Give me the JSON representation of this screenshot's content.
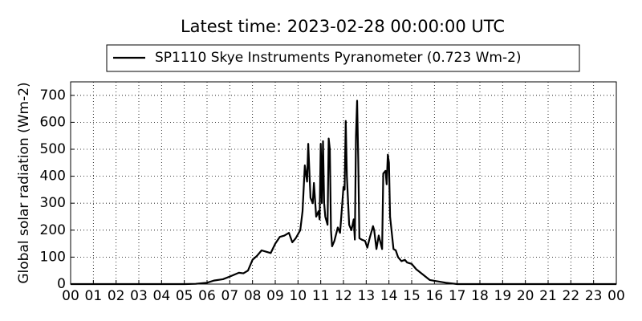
{
  "chart_data": {
    "type": "line",
    "title": "Latest time: 2023-02-28 00:00:00 UTC",
    "y_label": "Global solar radiation (Wm-2)",
    "x": [
      0,
      5,
      5.5,
      6,
      6.3,
      6.7,
      7,
      7.4,
      7.6,
      7.8,
      8,
      8.2,
      8.4,
      8.6,
      8.8,
      9,
      9.2,
      9.4,
      9.6,
      9.75,
      9.9,
      10.1,
      10.2,
      10.3,
      10.4,
      10.45,
      10.55,
      10.65,
      10.7,
      10.8,
      10.9,
      10.95,
      11.0,
      11.05,
      11.1,
      11.15,
      11.2,
      11.3,
      11.35,
      11.4,
      11.45,
      11.5,
      11.6,
      11.75,
      11.85,
      12.0,
      12.05,
      12.1,
      12.15,
      12.25,
      12.35,
      12.45,
      12.5,
      12.55,
      12.6,
      12.65,
      12.7,
      12.8,
      12.95,
      13.05,
      13.15,
      13.3,
      13.35,
      13.45,
      13.55,
      13.7,
      13.75,
      13.85,
      13.9,
      13.95,
      14.0,
      14.05,
      14.2,
      14.3,
      14.4,
      14.55,
      14.7,
      14.8,
      15,
      15.2,
      15.5,
      15.8,
      16,
      16.5,
      17,
      24
    ],
    "series": [
      {
        "name": "SP1110 Skye Instruments Pyranometer (0.723 Wm-2)",
        "color": "#000000",
        "values": [
          0,
          0,
          1,
          5,
          13,
          18,
          28,
          42,
          40,
          50,
          90,
          105,
          125,
          120,
          115,
          150,
          175,
          180,
          190,
          155,
          170,
          200,
          270,
          440,
          380,
          520,
          320,
          300,
          375,
          250,
          270,
          240,
          520,
          300,
          530,
          300,
          250,
          220,
          540,
          500,
          200,
          140,
          160,
          210,
          190,
          360,
          350,
          605,
          400,
          220,
          200,
          240,
          165,
          550,
          680,
          460,
          170,
          165,
          160,
          135,
          170,
          215,
          200,
          130,
          180,
          130,
          410,
          420,
          370,
          480,
          450,
          250,
          130,
          125,
          100,
          85,
          90,
          80,
          75,
          55,
          35,
          15,
          12,
          5,
          0,
          0
        ]
      }
    ],
    "xlim": [
      0,
      24
    ],
    "xticks": [
      {
        "value": 0,
        "label": "00"
      },
      {
        "value": 1,
        "label": "01"
      },
      {
        "value": 2,
        "label": "02"
      },
      {
        "value": 3,
        "label": "03"
      },
      {
        "value": 4,
        "label": "04"
      },
      {
        "value": 5,
        "label": "05"
      },
      {
        "value": 6,
        "label": "06"
      },
      {
        "value": 7,
        "label": "07"
      },
      {
        "value": 8,
        "label": "08"
      },
      {
        "value": 9,
        "label": "09"
      },
      10,
      11,
      12,
      13,
      14,
      15,
      16,
      17,
      18,
      19,
      20,
      21,
      22,
      23,
      {
        "value": 24,
        "label": "00"
      }
    ],
    "ylim": [
      0,
      750
    ],
    "yticks": [
      0,
      100,
      200,
      300,
      400,
      500,
      600,
      700
    ],
    "grid": true
  }
}
